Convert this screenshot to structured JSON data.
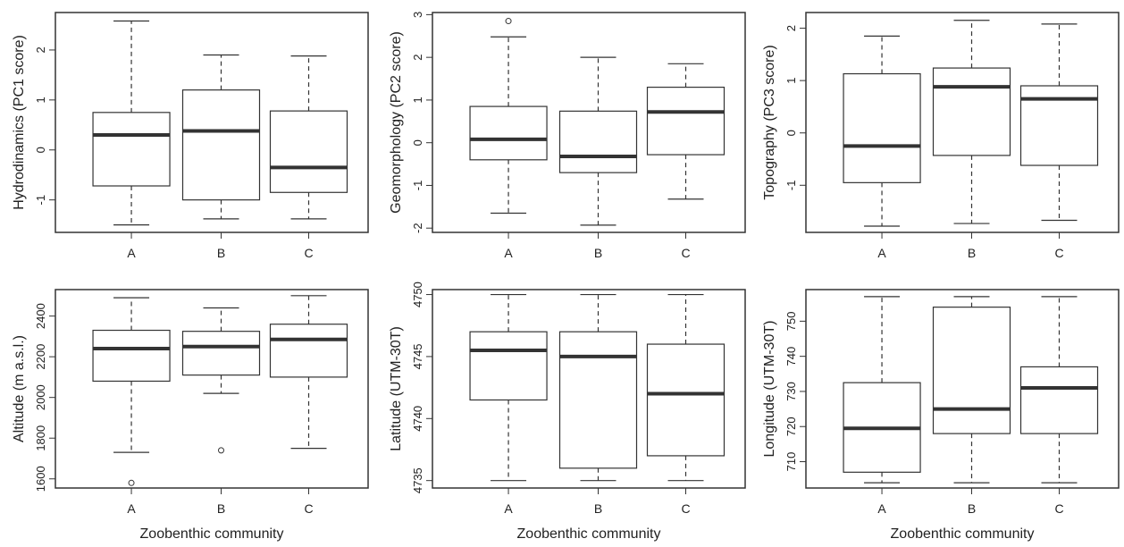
{
  "chart_data": [
    {
      "type": "box",
      "ylabel": "Hydrodinamics (PC1 score)",
      "xlabel": "",
      "ylim": [
        -1.65,
        2.75
      ],
      "yticks": [
        -1,
        0,
        1,
        2
      ],
      "categories": [
        "A",
        "B",
        "C"
      ],
      "boxes": [
        {
          "whisker_low": -1.5,
          "q1": -0.72,
          "median": 0.3,
          "q3": 0.75,
          "whisker_high": 2.58,
          "outliers": []
        },
        {
          "whisker_low": -1.38,
          "q1": -1.0,
          "median": 0.38,
          "q3": 1.2,
          "whisker_high": 1.9,
          "outliers": []
        },
        {
          "whisker_low": -1.38,
          "q1": -0.85,
          "median": -0.35,
          "q3": 0.78,
          "whisker_high": 1.88,
          "outliers": []
        }
      ]
    },
    {
      "type": "box",
      "ylabel": "Geomorphology (PC2 score)",
      "xlabel": "",
      "ylim": [
        -2.1,
        3.05
      ],
      "yticks": [
        -2,
        -1,
        0,
        1,
        2,
        3
      ],
      "categories": [
        "A",
        "B",
        "C"
      ],
      "boxes": [
        {
          "whisker_low": -1.65,
          "q1": -0.4,
          "median": 0.08,
          "q3": 0.85,
          "whisker_high": 2.48,
          "outliers": [
            2.85
          ]
        },
        {
          "whisker_low": -1.93,
          "q1": -0.7,
          "median": -0.32,
          "q3": 0.74,
          "whisker_high": 2.0,
          "outliers": []
        },
        {
          "whisker_low": -1.32,
          "q1": -0.28,
          "median": 0.72,
          "q3": 1.3,
          "whisker_high": 1.85,
          "outliers": []
        }
      ]
    },
    {
      "type": "box",
      "ylabel": "Topography (PC3 score)",
      "xlabel": "",
      "ylim": [
        -1.9,
        2.3
      ],
      "yticks": [
        -1,
        0,
        1,
        2
      ],
      "categories": [
        "A",
        "B",
        "C"
      ],
      "boxes": [
        {
          "whisker_low": -1.78,
          "q1": -0.95,
          "median": -0.25,
          "q3": 1.13,
          "whisker_high": 1.85,
          "outliers": []
        },
        {
          "whisker_low": -1.73,
          "q1": -0.43,
          "median": 0.88,
          "q3": 1.24,
          "whisker_high": 2.15,
          "outliers": []
        },
        {
          "whisker_low": -1.67,
          "q1": -0.62,
          "median": 0.65,
          "q3": 0.9,
          "whisker_high": 2.08,
          "outliers": []
        }
      ]
    },
    {
      "type": "box",
      "ylabel": "Altitude (m a.s.l.)",
      "xlabel": "Zoobenthic community",
      "ylim": [
        1555,
        2530
      ],
      "yticks": [
        1600,
        1800,
        2000,
        2200,
        2400
      ],
      "categories": [
        "A",
        "B",
        "C"
      ],
      "boxes": [
        {
          "whisker_low": 1730,
          "q1": 2080,
          "median": 2240,
          "q3": 2330,
          "whisker_high": 2490,
          "outliers": [
            1580
          ]
        },
        {
          "whisker_low": 2020,
          "q1": 2110,
          "median": 2250,
          "q3": 2325,
          "whisker_high": 2440,
          "outliers": [
            1740
          ]
        },
        {
          "whisker_low": 1750,
          "q1": 2100,
          "median": 2285,
          "q3": 2360,
          "whisker_high": 2500,
          "outliers": []
        }
      ]
    },
    {
      "type": "box",
      "ylabel": "Latitude (UTM-30T)",
      "xlabel": "Zoobenthic community",
      "ylim": [
        4734.4,
        4750.4
      ],
      "yticks": [
        4735,
        4740,
        4745,
        4750
      ],
      "categories": [
        "A",
        "B",
        "C"
      ],
      "boxes": [
        {
          "whisker_low": 4735,
          "q1": 4741.5,
          "median": 4745.5,
          "q3": 4747,
          "whisker_high": 4750,
          "outliers": []
        },
        {
          "whisker_low": 4735,
          "q1": 4736,
          "median": 4745,
          "q3": 4747,
          "whisker_high": 4750,
          "outliers": []
        },
        {
          "whisker_low": 4735,
          "q1": 4737,
          "median": 4742,
          "q3": 4746,
          "whisker_high": 4750,
          "outliers": []
        }
      ]
    },
    {
      "type": "box",
      "ylabel": "Longitude (UTM-30T)",
      "xlabel": "Zoobenthic community",
      "ylim": [
        702.5,
        759
      ],
      "yticks": [
        710,
        720,
        730,
        740,
        750
      ],
      "categories": [
        "A",
        "B",
        "C"
      ],
      "boxes": [
        {
          "whisker_low": 704,
          "q1": 707,
          "median": 719.5,
          "q3": 732.5,
          "whisker_high": 757,
          "outliers": []
        },
        {
          "whisker_low": 704,
          "q1": 718,
          "median": 725,
          "q3": 754,
          "whisker_high": 757,
          "outliers": []
        },
        {
          "whisker_low": 704,
          "q1": 718,
          "median": 731,
          "q3": 737,
          "whisker_high": 757,
          "outliers": []
        }
      ]
    }
  ]
}
